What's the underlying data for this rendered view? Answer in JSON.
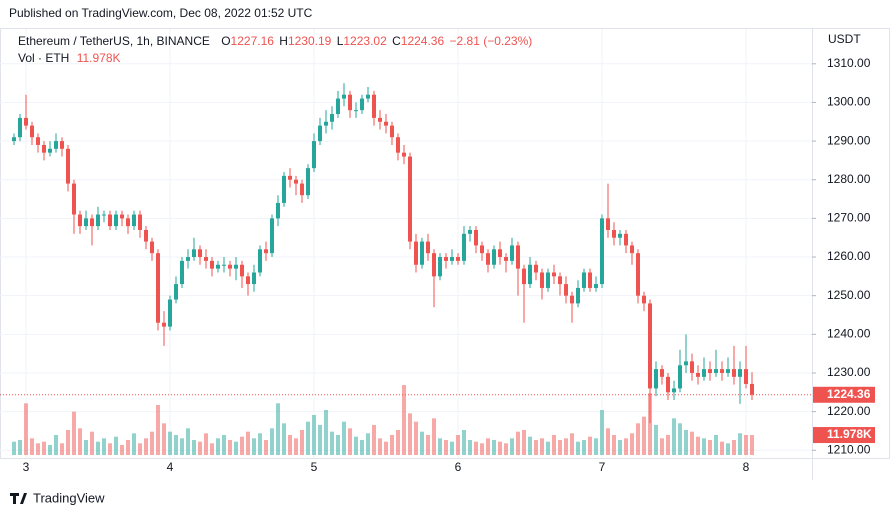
{
  "chart_data": {
    "type": "candlestick",
    "published": "Published on TradingView.com, Dec 08, 2022 01:52 UTC",
    "title": "Ethereum / TetherUS, 1h, BINANCE",
    "ohlc_prefixes": [
      "O",
      "H",
      "L",
      "C"
    ],
    "change_label": "−2.81 (−0.23%)",
    "volume_title": "Vol · ETH",
    "last_volume_label": "11.978K",
    "y_axis_label": "USDT",
    "brand": "TradingView",
    "up_color": "#26a69a",
    "down_color": "#ef5350",
    "grid": true,
    "ylim": [
      1208,
      1319
    ],
    "yticks": [
      {
        "value": 1210,
        "label": "1210.00"
      },
      {
        "value": 1220,
        "label": "1220.00"
      },
      {
        "value": 1230,
        "label": "1230.00"
      },
      {
        "value": 1240,
        "label": "1240.00"
      },
      {
        "value": 1250,
        "label": "1250.00"
      },
      {
        "value": 1260,
        "label": "1260.00"
      },
      {
        "value": 1270,
        "label": "1270.00"
      },
      {
        "value": 1280,
        "label": "1280.00"
      },
      {
        "value": 1290,
        "label": "1290.00"
      },
      {
        "value": 1300,
        "label": "1300.00"
      },
      {
        "value": 1310,
        "label": "1310.00"
      }
    ],
    "xticks": [
      {
        "value": 2,
        "label": "3"
      },
      {
        "value": 26,
        "label": "4"
      },
      {
        "value": 50,
        "label": "5"
      },
      {
        "value": 74,
        "label": "6"
      },
      {
        "value": 98,
        "label": "7"
      },
      {
        "value": 122,
        "label": "8"
      }
    ],
    "open": [
      1290,
      1291,
      1296,
      1294,
      1291,
      1289,
      1287,
      1288,
      1290,
      1288,
      1279,
      1271,
      1268,
      1270,
      1268,
      1271,
      1271,
      1268,
      1271,
      1270,
      1268,
      1271,
      1267,
      1264,
      1261,
      1243,
      1242,
      1249,
      1253,
      1259,
      1260,
      1262,
      1260,
      1259,
      1257,
      1258,
      1258,
      1257,
      1258,
      1255,
      1253,
      1256,
      1262,
      1261,
      1270,
      1274,
      1281,
      1280,
      1279,
      1276,
      1283,
      1290,
      1294,
      1295,
      1297,
      1301,
      1302,
      1298,
      1298,
      1301,
      1302,
      1296,
      1295,
      1294,
      1291,
      1287,
      1286,
      1264,
      1258,
      1264,
      1261,
      1255,
      1260,
      1259,
      1260,
      1259,
      1266,
      1267,
      1263,
      1261,
      1258,
      1262,
      1260,
      1259,
      1263,
      1257,
      1253,
      1258,
      1256,
      1252,
      1256,
      1255,
      1253,
      1250,
      1248,
      1252,
      1256,
      1252,
      1253,
      1270,
      1267,
      1265,
      1266,
      1263,
      1261,
      1250,
      1248,
      1226,
      1231,
      1229,
      1225,
      1226,
      1232,
      1233,
      1230,
      1229,
      1231,
      1230,
      1231,
      1230,
      1231,
      1229,
      1231,
      1227.16
    ],
    "high": [
      1292,
      1297,
      1302,
      1295,
      1292,
      1290,
      1290,
      1292,
      1291,
      1289,
      1280,
      1272,
      1272,
      1271,
      1273,
      1272,
      1272,
      1272,
      1272,
      1271,
      1272,
      1272,
      1268,
      1265,
      1262,
      1246,
      1250,
      1255,
      1260,
      1262,
      1265,
      1263,
      1262,
      1260,
      1259,
      1260,
      1259,
      1260,
      1259,
      1256,
      1258,
      1263,
      1264,
      1271,
      1276,
      1282,
      1283,
      1281,
      1280,
      1284,
      1292,
      1296,
      1298,
      1299,
      1303,
      1305,
      1303,
      1300,
      1302,
      1304,
      1303,
      1298,
      1297,
      1295,
      1292,
      1289,
      1287,
      1266,
      1265,
      1266,
      1262,
      1261,
      1261,
      1262,
      1261,
      1268,
      1268,
      1268,
      1264,
      1262,
      1263,
      1264,
      1261,
      1265,
      1264,
      1258,
      1260,
      1259,
      1257,
      1257,
      1258,
      1256,
      1255,
      1251,
      1254,
      1257,
      1257,
      1255,
      1271,
      1279,
      1269,
      1267,
      1267,
      1264,
      1262,
      1251,
      1249,
      1233,
      1232,
      1230,
      1228,
      1236,
      1240,
      1235,
      1232,
      1234,
      1233,
      1236,
      1233,
      1234,
      1237,
      1233,
      1237,
      1230.19
    ],
    "low": [
      1289,
      1290,
      1293,
      1289,
      1287,
      1285,
      1286,
      1287,
      1286,
      1277,
      1266,
      1266,
      1267,
      1263,
      1267,
      1269,
      1267,
      1267,
      1268,
      1266,
      1267,
      1265,
      1262,
      1259,
      1241,
      1237,
      1241,
      1248,
      1252,
      1257,
      1259,
      1258,
      1257,
      1255,
      1256,
      1256,
      1255,
      1254,
      1252,
      1250,
      1251,
      1255,
      1259,
      1260,
      1268,
      1273,
      1278,
      1276,
      1274,
      1275,
      1282,
      1289,
      1292,
      1293,
      1296,
      1299,
      1296,
      1296,
      1297,
      1300,
      1294,
      1293,
      1292,
      1289,
      1285,
      1284,
      1262,
      1256,
      1257,
      1259,
      1247,
      1254,
      1257,
      1258,
      1258,
      1258,
      1264,
      1261,
      1259,
      1256,
      1257,
      1258,
      1256,
      1258,
      1250,
      1243,
      1252,
      1254,
      1249,
      1251,
      1253,
      1250,
      1248,
      1243,
      1247,
      1251,
      1251,
      1251,
      1252,
      1265,
      1263,
      1263,
      1261,
      1258,
      1248,
      1246,
      1217,
      1224,
      1227,
      1223,
      1223,
      1225,
      1230,
      1228,
      1227,
      1228,
      1228,
      1229,
      1228,
      1229,
      1227,
      1222,
      1226,
      1223.02
    ],
    "close": [
      1291,
      1296,
      1294,
      1291,
      1289,
      1287,
      1288,
      1290,
      1288,
      1279,
      1271,
      1268,
      1270,
      1268,
      1271,
      1271,
      1268,
      1271,
      1270,
      1268,
      1271,
      1267,
      1264,
      1261,
      1243,
      1242,
      1249,
      1253,
      1259,
      1260,
      1262,
      1260,
      1259,
      1257,
      1258,
      1258,
      1257,
      1258,
      1255,
      1253,
      1256,
      1262,
      1261,
      1270,
      1274,
      1281,
      1280,
      1279,
      1276,
      1283,
      1290,
      1294,
      1295,
      1297,
      1301,
      1302,
      1298,
      1298,
      1301,
      1302,
      1296,
      1295,
      1294,
      1291,
      1287,
      1286,
      1264,
      1258,
      1264,
      1261,
      1255,
      1260,
      1259,
      1260,
      1259,
      1266,
      1267,
      1263,
      1261,
      1258,
      1262,
      1260,
      1259,
      1263,
      1257,
      1253,
      1258,
      1256,
      1252,
      1256,
      1255,
      1253,
      1250,
      1248,
      1252,
      1256,
      1252,
      1253,
      1270,
      1267,
      1265,
      1266,
      1263,
      1261,
      1250,
      1248,
      1226,
      1231,
      1229,
      1225,
      1226,
      1232,
      1233,
      1230,
      1229,
      1231,
      1230,
      1231,
      1230,
      1231,
      1229,
      1231,
      1227.16,
      1224.36
    ],
    "volume": [
      8,
      9,
      31,
      10,
      7,
      8,
      6,
      12,
      7,
      15,
      26,
      16,
      9,
      14,
      8,
      10,
      7,
      11,
      6,
      9,
      13,
      7,
      10,
      14,
      30,
      19,
      14,
      12,
      10,
      16,
      9,
      8,
      13,
      7,
      10,
      12,
      9,
      8,
      11,
      14,
      10,
      13,
      9,
      16,
      31,
      19,
      12,
      10,
      15,
      20,
      24,
      18,
      27,
      14,
      12,
      20,
      16,
      11,
      9,
      13,
      18,
      10,
      8,
      12,
      15,
      42,
      25,
      20,
      14,
      12,
      22,
      10,
      9,
      8,
      12,
      15,
      9,
      8,
      7,
      10,
      9,
      8,
      7,
      10,
      14,
      15,
      11,
      9,
      10,
      8,
      12,
      9,
      10,
      13,
      8,
      9,
      11,
      10,
      27,
      16,
      12,
      9,
      10,
      13,
      19,
      23,
      37,
      18,
      10,
      12,
      22,
      19,
      15,
      14,
      11,
      10,
      9,
      12,
      8,
      7,
      9,
      13,
      12,
      11.978
    ]
  }
}
